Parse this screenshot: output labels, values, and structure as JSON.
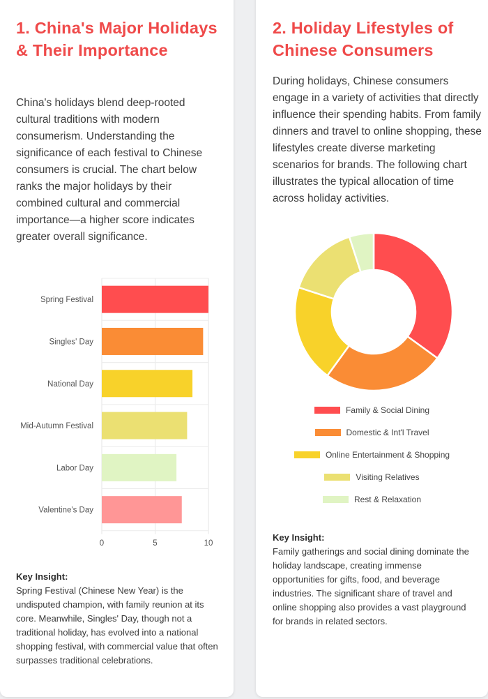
{
  "section1": {
    "title": "1. China's Major Holidays & Their Importance",
    "intro": "China's holidays blend deep-rooted cultural traditions with modern consumerism. Understanding the significance of each festival to Chinese consumers is crucial. The chart below ranks the major holidays by their combined cultural and commercial importance—a higher score indicates greater overall significance.",
    "insight_label": "Key Insight:",
    "insight_text": "Spring Festival (Chinese New Year) is the undisputed champion, with family reunion at its core. Meanwhile, Singles' Day, though not a traditional holiday, has evolved into a national shopping festival, with commercial value that often surpasses traditional celebrations."
  },
  "section2": {
    "title": "2. Holiday Lifestyles of Chinese Consumers",
    "intro": "During holidays, Chinese consumers engage in a variety of activities that directly influence their spending habits. From family dinners and travel to online shopping, these lifestyles create diverse marketing scenarios for brands. The following chart illustrates the typical allocation of time across holiday activities.",
    "insight_label": "Key Insight:",
    "insight_text": "Family gatherings and social dining dominate the holiday landscape, creating immense opportunities for gifts, food, and beverage industries. The significant share of travel and online shopping also provides a vast playground for brands in related sectors."
  },
  "chart_data": [
    {
      "type": "bar",
      "orientation": "horizontal",
      "categories": [
        "Spring Festival",
        "Singles' Day",
        "National Day",
        "Mid-Autumn Festival",
        "Labor Day",
        "Valentine's Day"
      ],
      "values": [
        10,
        9.5,
        8.5,
        8,
        7,
        7.5
      ],
      "colors": [
        "#ff4d4f",
        "#fa8c35",
        "#f8d22a",
        "#ebe072",
        "#e0f4c3",
        "#ff9696"
      ],
      "xlim": [
        0,
        10
      ],
      "xticks": [
        0,
        5,
        10
      ],
      "title": "",
      "xlabel": "",
      "ylabel": "",
      "legend": "none"
    },
    {
      "type": "pie",
      "variant": "donut",
      "labels": [
        "Family & Social Dining",
        "Domestic & Int'l Travel",
        "Online Entertainment & Shopping",
        "Visiting Relatives",
        "Rest & Relaxation"
      ],
      "values": [
        35,
        25,
        20,
        15,
        5
      ],
      "colors": [
        "#ff4d4f",
        "#fa8c35",
        "#f8d22a",
        "#ebe072",
        "#e0f4c3"
      ],
      "title": "",
      "legend": "bottom"
    }
  ]
}
